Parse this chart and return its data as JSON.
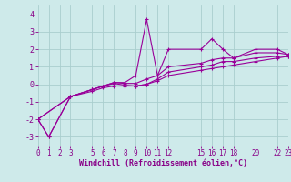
{
  "xlabel": "Windchill (Refroidissement éolien,°C)",
  "background_color": "#ceeaea",
  "grid_color": "#aacece",
  "line_color": "#990099",
  "xlim": [
    0,
    23
  ],
  "ylim": [
    -3.5,
    4.5
  ],
  "xticks": [
    0,
    1,
    2,
    3,
    5,
    6,
    7,
    8,
    9,
    10,
    11,
    12,
    15,
    16,
    17,
    18,
    20,
    22,
    23
  ],
  "yticks": [
    -3,
    -2,
    -1,
    0,
    1,
    2,
    3,
    4
  ],
  "series1_x": [
    0,
    1,
    3,
    5,
    6,
    7,
    8,
    9,
    10,
    11,
    12,
    15,
    16,
    17,
    18,
    20,
    22,
    23
  ],
  "series1_y": [
    -2.0,
    -3.0,
    -0.7,
    -0.3,
    -0.1,
    0.1,
    0.1,
    0.5,
    3.7,
    0.5,
    2.0,
    2.0,
    2.6,
    2.0,
    1.5,
    2.0,
    2.0,
    1.7
  ],
  "series2_x": [
    0,
    3,
    5,
    6,
    7,
    8,
    9,
    10,
    11,
    12,
    15,
    16,
    17,
    18,
    20,
    22,
    23
  ],
  "series2_y": [
    -2.0,
    -0.7,
    -0.3,
    -0.1,
    0.1,
    0.05,
    0.05,
    0.3,
    0.5,
    1.0,
    1.2,
    1.4,
    1.5,
    1.5,
    1.8,
    1.8,
    1.7
  ],
  "series3_x": [
    0,
    3,
    5,
    6,
    7,
    8,
    9,
    10,
    11,
    12,
    15,
    16,
    17,
    18,
    20,
    22,
    23
  ],
  "series3_y": [
    -2.0,
    -0.7,
    -0.3,
    -0.1,
    0.05,
    -0.05,
    -0.1,
    0.0,
    0.3,
    0.7,
    1.0,
    1.1,
    1.3,
    1.3,
    1.5,
    1.6,
    1.6
  ],
  "series4_x": [
    0,
    1,
    3,
    5,
    6,
    7,
    8,
    9,
    10,
    11,
    12,
    15,
    16,
    17,
    18,
    20,
    22,
    23
  ],
  "series4_y": [
    -2.0,
    -3.0,
    -0.7,
    -0.4,
    -0.2,
    -0.1,
    -0.1,
    -0.1,
    0.0,
    0.2,
    0.5,
    0.8,
    0.9,
    1.0,
    1.1,
    1.3,
    1.5,
    1.6
  ]
}
